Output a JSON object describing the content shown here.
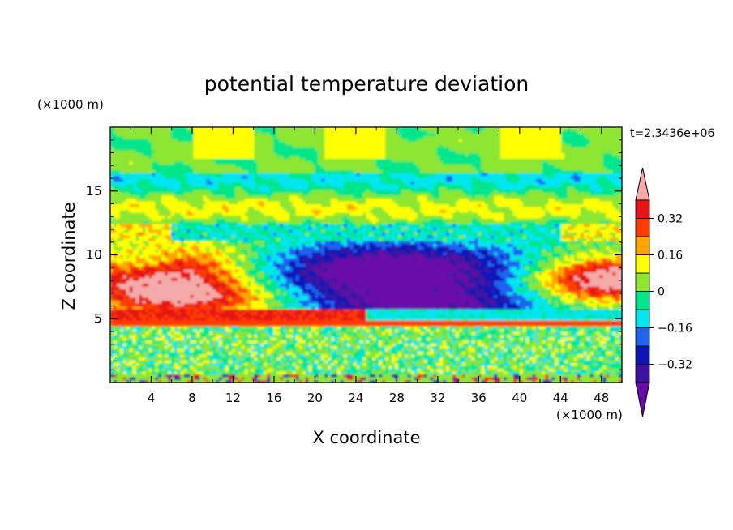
{
  "chart_data": {
    "type": "heatmap",
    "title": "potential temperature deviation",
    "xlabel": "X coordinate",
    "ylabel": "Z coordinate",
    "x_unit": "(×1000 m)",
    "y_unit": "(×1000 m)",
    "time_label": "t=2.3436e+06",
    "xlim": [
      0,
      50
    ],
    "ylim": [
      0,
      20
    ],
    "x_ticks": [
      4,
      8,
      12,
      16,
      20,
      24,
      28,
      32,
      36,
      40,
      44,
      48
    ],
    "y_ticks": [
      5,
      10,
      15
    ],
    "colorbar": {
      "levels": [
        -0.4,
        -0.32,
        -0.24,
        -0.16,
        -0.08,
        0,
        0.08,
        0.16,
        0.24,
        0.32,
        0.4
      ],
      "labels": [
        "0.32",
        "0.16",
        "0",
        "−0.16",
        "−0.32"
      ],
      "label_values": [
        0.32,
        0.16,
        0,
        -0.16,
        -0.32
      ],
      "colors": [
        "#6a0aa8",
        "#3a14a0",
        "#0f14b8",
        "#1e64f0",
        "#00e6f0",
        "#00e68a",
        "#8ce632",
        "#ffff00",
        "#ffa500",
        "#ff3c00",
        "#e61414",
        "#f5aaaa"
      ]
    },
    "structure": [
      {
        "region": "boundary layer",
        "z": [
          0.2,
          4.5
        ],
        "x": [
          0,
          50
        ],
        "value_range": [
          -0.08,
          0.08
        ]
      },
      {
        "region": "warm band",
        "z": [
          4.6,
          5.8
        ],
        "x": [
          0,
          24
        ],
        "value": 0.32
      },
      {
        "region": "warm anomaly west",
        "z": [
          5.8,
          11
        ],
        "x": [
          0,
          15
        ],
        "value": 0.4
      },
      {
        "region": "warm anomaly east",
        "z": [
          6.5,
          9.8
        ],
        "x": [
          40,
          50
        ],
        "value": 0.4
      },
      {
        "region": "cold anomaly",
        "z": [
          5,
          11
        ],
        "x": [
          12,
          42
        ],
        "value": -0.4
      },
      {
        "region": "upper troposphere",
        "z": [
          11,
          20
        ],
        "x": [
          0,
          50
        ],
        "value_range": [
          -0.16,
          0.16
        ]
      }
    ]
  }
}
